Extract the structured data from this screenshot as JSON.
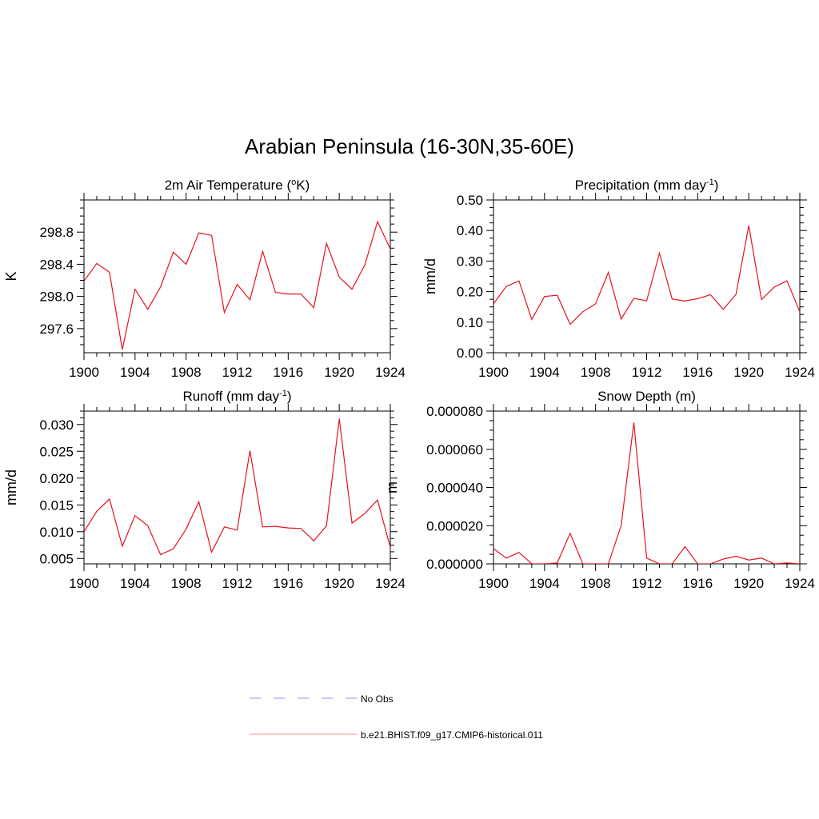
{
  "title": "Arabian Peninsula (16-30N,35-60E)",
  "line_color": "#e8121e",
  "obs_color": "#a8a8f0",
  "legend": [
    {
      "label": "No Obs",
      "style": "dashed"
    },
    {
      "label": "b.e21.BHIST.f09_g17.CMIP6-historical.011",
      "style": "solid"
    }
  ],
  "chart_data": [
    {
      "type": "line",
      "title": "2m Air Temperature (°K)",
      "title_parts": {
        "before": "2m Air Temperature (",
        "sup": "o",
        "after": "K)"
      },
      "ylabel": "K",
      "xlim": [
        1900,
        1924
      ],
      "ylim": [
        297.3,
        299.2
      ],
      "yticks": [
        "297.6",
        "298.0",
        "298.4",
        "298.8"
      ],
      "xticks": [
        "1900",
        "1904",
        "1908",
        "1912",
        "1916",
        "1920",
        "1924"
      ],
      "x": [
        1900,
        1901,
        1902,
        1903,
        1904,
        1905,
        1906,
        1907,
        1908,
        1909,
        1910,
        1911,
        1912,
        1913,
        1914,
        1915,
        1916,
        1917,
        1918,
        1919,
        1920,
        1921,
        1922,
        1923,
        1924
      ],
      "series": [
        {
          "values": [
            298.19,
            298.41,
            298.3,
            297.34,
            298.09,
            297.84,
            298.12,
            298.55,
            298.4,
            298.79,
            298.76,
            297.8,
            298.15,
            297.96,
            298.56,
            298.05,
            298.03,
            298.03,
            297.86,
            298.66,
            298.24,
            298.09,
            298.39,
            298.93,
            298.59
          ]
        }
      ]
    },
    {
      "type": "line",
      "title": "Precipitation (mm day-1)",
      "title_parts": {
        "before": "Precipitation (mm day",
        "sup": "-1",
        "after": ")"
      },
      "ylabel": "mm/d",
      "xlim": [
        1900,
        1924
      ],
      "ylim": [
        0.0,
        0.5
      ],
      "yticks": [
        "0.00",
        "0.10",
        "0.20",
        "0.30",
        "0.40",
        "0.50"
      ],
      "xticks": [
        "1900",
        "1904",
        "1908",
        "1912",
        "1916",
        "1920",
        "1924"
      ],
      "x": [
        1900,
        1901,
        1902,
        1903,
        1904,
        1905,
        1906,
        1907,
        1908,
        1909,
        1910,
        1911,
        1912,
        1913,
        1914,
        1915,
        1916,
        1917,
        1918,
        1919,
        1920,
        1921,
        1922,
        1923,
        1924
      ],
      "series": [
        {
          "values": [
            0.16,
            0.217,
            0.235,
            0.109,
            0.184,
            0.188,
            0.093,
            0.134,
            0.16,
            0.263,
            0.11,
            0.178,
            0.17,
            0.326,
            0.176,
            0.169,
            0.177,
            0.19,
            0.142,
            0.191,
            0.416,
            0.174,
            0.215,
            0.235,
            0.134
          ]
        }
      ]
    },
    {
      "type": "line",
      "title": "Runoff (mm day-1)",
      "title_parts": {
        "before": "Runoff (mm day",
        "sup": "-1",
        "after": ")"
      },
      "ylabel": "mm/d",
      "xlim": [
        1900,
        1924
      ],
      "ylim": [
        0.004,
        0.0325
      ],
      "yticks": [
        "0.005",
        "0.010",
        "0.015",
        "0.020",
        "0.025",
        "0.030"
      ],
      "xticks": [
        "1900",
        "1904",
        "1908",
        "1912",
        "1916",
        "1920",
        "1924"
      ],
      "x": [
        1900,
        1901,
        1902,
        1903,
        1904,
        1905,
        1906,
        1907,
        1908,
        1909,
        1910,
        1911,
        1912,
        1913,
        1914,
        1915,
        1916,
        1917,
        1918,
        1919,
        1920,
        1921,
        1922,
        1923,
        1924
      ],
      "series": [
        {
          "values": [
            0.01,
            0.0138,
            0.0161,
            0.0073,
            0.013,
            0.0111,
            0.0057,
            0.0068,
            0.0105,
            0.0156,
            0.0062,
            0.0109,
            0.0103,
            0.0251,
            0.0109,
            0.011,
            0.0107,
            0.0106,
            0.0083,
            0.0111,
            0.0311,
            0.0116,
            0.0134,
            0.0159,
            0.0071
          ]
        }
      ]
    },
    {
      "type": "line",
      "title": "Snow Depth (m)",
      "title_parts": {
        "before": "Snow Depth (m)",
        "sup": "",
        "after": ""
      },
      "ylabel": "m",
      "xlim": [
        1900,
        1924
      ],
      "ylim": [
        0.0,
        8e-05
      ],
      "yticks": [
        "0.000000",
        "0.000020",
        "0.000040",
        "0.000060",
        "0.000080"
      ],
      "xticks": [
        "1900",
        "1904",
        "1908",
        "1912",
        "1916",
        "1920",
        "1924"
      ],
      "x": [
        1900,
        1901,
        1902,
        1903,
        1904,
        1905,
        1906,
        1907,
        1908,
        1909,
        1910,
        1911,
        1912,
        1913,
        1914,
        1915,
        1916,
        1917,
        1918,
        1919,
        1920,
        1921,
        1922,
        1923,
        1924
      ],
      "series": [
        {
          "values": [
            8e-06,
            3e-06,
            6e-06,
            0.0,
            0.0,
            5e-07,
            1.6e-05,
            0.0,
            0.0,
            0.0,
            2e-05,
            7.4e-05,
            3e-06,
            0.0,
            0.0,
            9e-06,
            0.0,
            0.0,
            2.5e-06,
            4e-06,
            2e-06,
            3e-06,
            0.0,
            5e-07,
            0.0
          ]
        }
      ]
    }
  ]
}
